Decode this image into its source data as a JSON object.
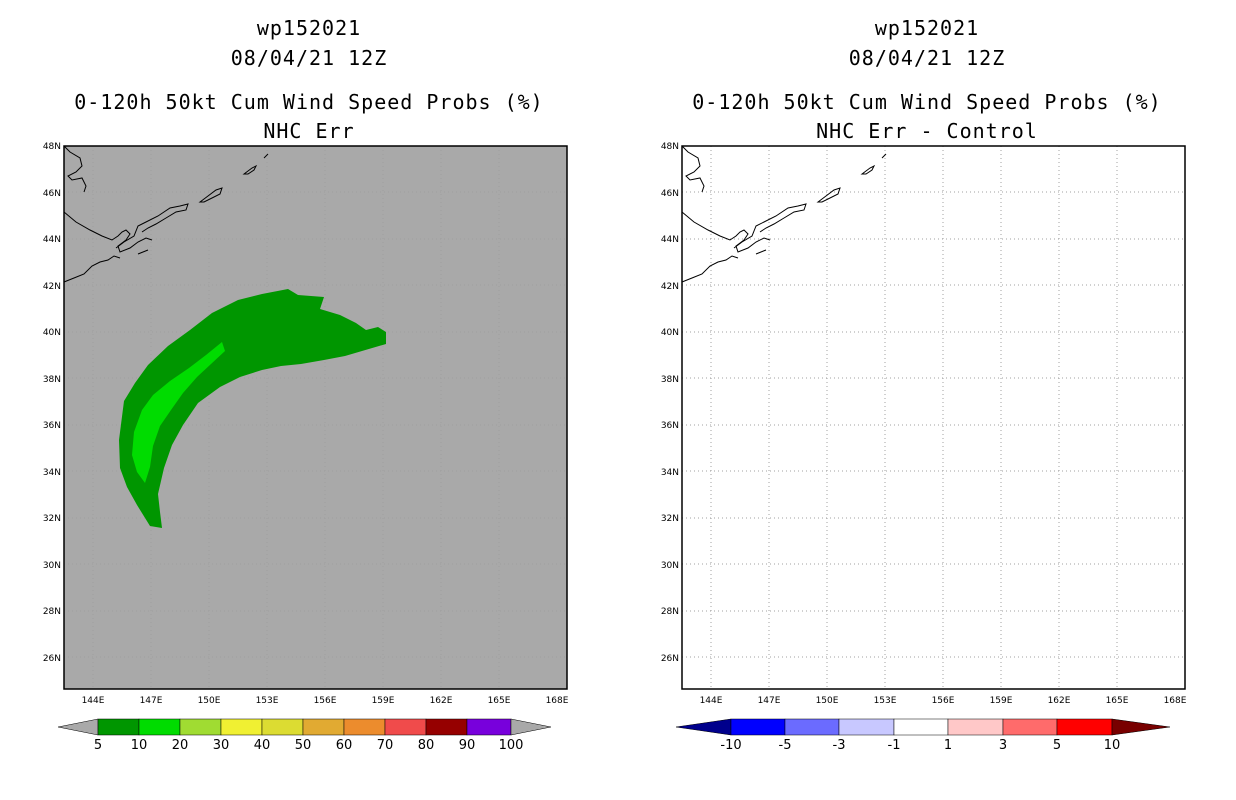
{
  "left_panel": {
    "title_lines": [
      "wp152021",
      "08/04/21 12Z",
      "0-120h 50kt Cum Wind Speed Probs (%)",
      "NHC Err"
    ],
    "map_background": "#a9a9a9",
    "colorbar": {
      "labels": [
        "5",
        "10",
        "20",
        "30",
        "40",
        "50",
        "60",
        "70",
        "80",
        "90",
        "100"
      ],
      "colors": [
        "#009600",
        "#00dc00",
        "#a0dc32",
        "#f0f032",
        "#dcdc32",
        "#e1aa32",
        "#ec8c2d",
        "#f04b4b",
        "#960000",
        "#7800dc"
      ],
      "end_colors": [
        "#a9a9a9",
        "#a9a9a9"
      ]
    }
  },
  "right_panel": {
    "title_lines": [
      "wp152021",
      "08/04/21 12Z",
      "0-120h 50kt Cum Wind Speed Probs (%)",
      "NHC Err - Control"
    ],
    "map_background": "#ffffff",
    "colorbar": {
      "labels": [
        "-10",
        "-5",
        "-3",
        "-1",
        "1",
        "3",
        "5",
        "10"
      ],
      "colors": [
        "#0000ff",
        "#6b6bff",
        "#c8c8ff",
        "#ffffff",
        "#ffc8c8",
        "#ff6b6b",
        "#ff0000"
      ],
      "end_colors": [
        "#00008c",
        "#780000"
      ]
    }
  },
  "axes": {
    "lat_labels": [
      "48N",
      "46N",
      "44N",
      "42N",
      "40N",
      "38N",
      "36N",
      "34N",
      "32N",
      "30N",
      "28N",
      "26N"
    ],
    "lon_labels": [
      "144E",
      "147E",
      "150E",
      "153E",
      "156E",
      "159E",
      "162E",
      "165E",
      "168E"
    ]
  },
  "colors": {
    "prob_5": "#009600",
    "prob_10": "#00dc00",
    "coast": "#000000",
    "grid": "#a0a0a0"
  }
}
